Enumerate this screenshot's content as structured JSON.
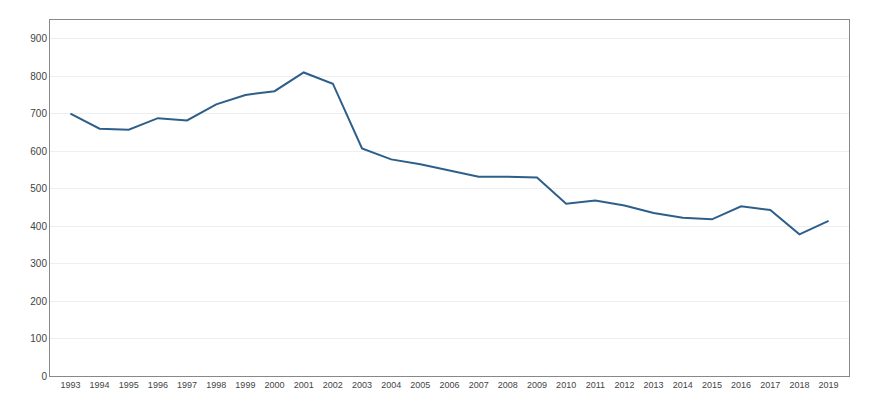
{
  "chart_data": {
    "type": "line",
    "x": [
      1993,
      1994,
      1995,
      1996,
      1997,
      1998,
      1999,
      2000,
      2001,
      2002,
      2003,
      2004,
      2005,
      2006,
      2007,
      2008,
      2009,
      2010,
      2011,
      2012,
      2013,
      2014,
      2015,
      2016,
      2017,
      2018,
      2019
    ],
    "values": [
      700,
      660,
      657,
      688,
      682,
      725,
      750,
      760,
      810,
      780,
      607,
      578,
      565,
      548,
      532,
      532,
      530,
      460,
      468,
      455,
      435,
      422,
      418,
      453,
      443,
      378,
      414
    ],
    "color": "#2E5F8A",
    "xlim": [
      1992.3,
      2019.7
    ],
    "xticks": [
      1993,
      1994,
      1995,
      1996,
      1997,
      1998,
      1999,
      2000,
      2001,
      2002,
      2003,
      2004,
      2005,
      2006,
      2007,
      2008,
      2009,
      2010,
      2011,
      2012,
      2013,
      2014,
      2015,
      2016,
      2017,
      2018,
      2019
    ],
    "ylim": [
      0,
      950
    ],
    "yticks": [
      0,
      100,
      200,
      300,
      400,
      500,
      600,
      700,
      800,
      900
    ],
    "grid": true
  }
}
